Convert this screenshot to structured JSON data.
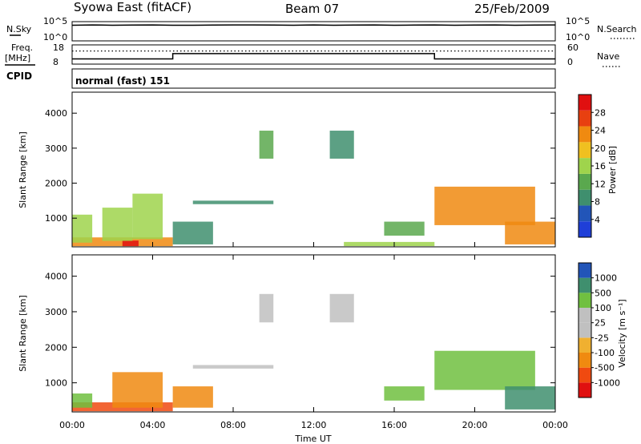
{
  "header": {
    "station": "Syowa East (fitACF)",
    "beam": "Beam 07",
    "date": "25/Feb/2009"
  },
  "colors": {
    "power_scale": [
      "#1f3fd8",
      "#2255b8",
      "#3f8f6e",
      "#5aa84e",
      "#9fd44c",
      "#f0c020",
      "#f08a10",
      "#e84010",
      "#e01010"
    ],
    "velocity_scale": [
      "#e01010",
      "#f04a10",
      "#f08a10",
      "#f0b030",
      "#c0c0c0",
      "#c0c0c0",
      "#70c040",
      "#3f8f6e",
      "#2255b8"
    ],
    "ground_scatter": "#c0c0c0"
  },
  "chart_data": [
    {
      "type": "line",
      "panel": "nsky-nsearch",
      "left_label": "N.Sky",
      "right_label": "N.Search",
      "left_ticks": [
        "10^5",
        "10^0"
      ],
      "right_ticks": [
        "10^5",
        "10^0"
      ],
      "x_range_hours": [
        0,
        24
      ],
      "series": [
        {
          "style": "solid",
          "values_log10": [
            4.2,
            4.3,
            4.2,
            4.25,
            4.3,
            4.2,
            4.2,
            4.25,
            4.3,
            4.3,
            4.25,
            4.2,
            4.3,
            4.2,
            4.25,
            4.3,
            4.2,
            4.25,
            4.3,
            4.2,
            4.25,
            4.3,
            4.2,
            4.25,
            4.3
          ]
        }
      ]
    },
    {
      "type": "line",
      "panel": "freq-nave",
      "left_label": "Freq.",
      "left_unit": "[MHz]",
      "right_label": "Nave",
      "left_ticks": [
        "18",
        "8"
      ],
      "right_ticks": [
        "60",
        "0"
      ],
      "x_range_hours": [
        0,
        24
      ],
      "series": [
        {
          "style": "solid",
          "steps": [
            {
              "from": 0,
              "to": 5,
              "value": 10.5
            },
            {
              "from": 5,
              "to": 18,
              "value": 13.5
            },
            {
              "from": 18,
              "to": 24,
              "value": 10.5
            }
          ]
        },
        {
          "style": "dotted",
          "steps": [
            {
              "from": 0,
              "to": 24,
              "value": 42
            }
          ]
        }
      ]
    },
    {
      "type": "text",
      "panel": "cpid",
      "label": "CPID",
      "value": "normal (fast) 151"
    },
    {
      "type": "heatmap",
      "panel": "power",
      "ylabel": "Slant Range [km]",
      "y_ticks": [
        1000,
        2000,
        3000,
        4000
      ],
      "ylim": [
        180,
        4600
      ],
      "x_range_hours": [
        0,
        24
      ],
      "colorbar_label": "Power [dB]",
      "colorbar_ticks": [
        "4",
        "8",
        "12",
        "16",
        "20",
        "24",
        "28"
      ],
      "regions": [
        {
          "t0": 0.0,
          "t1": 5.0,
          "r0": 200,
          "r1": 450,
          "level": 0.75
        },
        {
          "t0": 2.5,
          "t1": 3.3,
          "r0": 200,
          "r1": 360,
          "level": 1.0
        },
        {
          "t0": 0.0,
          "t1": 1.0,
          "r0": 300,
          "r1": 1100,
          "level": 0.55
        },
        {
          "t0": 1.5,
          "t1": 3.0,
          "r0": 350,
          "r1": 1300,
          "level": 0.5
        },
        {
          "t0": 3.0,
          "t1": 4.5,
          "r0": 400,
          "r1": 1700,
          "level": 0.45
        },
        {
          "t0": 5.0,
          "t1": 7.0,
          "r0": 250,
          "r1": 900,
          "level": 0.3
        },
        {
          "t0": 6.0,
          "t1": 10.0,
          "r0": 1400,
          "r1": 1500,
          "level": 0.25
        },
        {
          "t0": 9.3,
          "t1": 10.0,
          "r0": 2700,
          "r1": 3500,
          "level": 0.35
        },
        {
          "t0": 12.8,
          "t1": 14.0,
          "r0": 2700,
          "r1": 3500,
          "level": 0.3
        },
        {
          "t0": 15.5,
          "t1": 17.5,
          "r0": 500,
          "r1": 900,
          "level": 0.35
        },
        {
          "t0": 18.0,
          "t1": 23.0,
          "r0": 800,
          "r1": 1900,
          "level": 0.7
        },
        {
          "t0": 21.5,
          "t1": 24.0,
          "r0": 250,
          "r1": 900,
          "level": 0.75
        },
        {
          "t0": 13.5,
          "t1": 18.0,
          "r0": 200,
          "r1": 320,
          "level": 0.5
        }
      ]
    },
    {
      "type": "heatmap",
      "panel": "velocity",
      "ylabel": "Slant Range [km]",
      "y_ticks": [
        1000,
        2000,
        3000,
        4000
      ],
      "ylim": [
        180,
        4600
      ],
      "x_range_hours": [
        0,
        24
      ],
      "xlabel": "Time UT",
      "x_ticks": [
        "00:00",
        "04:00",
        "08:00",
        "12:00",
        "16:00",
        "20:00",
        "00:00"
      ],
      "colorbar_label": "Velocity [m s⁻¹]",
      "colorbar_ticks": [
        "-1000",
        "-500",
        "-100",
        "-25",
        "25",
        "100",
        "500",
        "1000"
      ],
      "regions": [
        {
          "t0": 0.0,
          "t1": 5.0,
          "r0": 200,
          "r1": 450,
          "level": 0.15
        },
        {
          "t0": 2.0,
          "t1": 4.5,
          "r0": 300,
          "r1": 1300,
          "level": 0.2
        },
        {
          "t0": 5.0,
          "t1": 7.0,
          "r0": 300,
          "r1": 900,
          "level": 0.25
        },
        {
          "t0": 6.0,
          "t1": 10.0,
          "r0": 1400,
          "r1": 1500,
          "level": 0.5
        },
        {
          "t0": 9.3,
          "t1": 10.0,
          "r0": 2700,
          "r1": 3500,
          "level": 0.5
        },
        {
          "t0": 12.8,
          "t1": 14.0,
          "r0": 2700,
          "r1": 3500,
          "level": 0.5
        },
        {
          "t0": 15.5,
          "t1": 17.5,
          "r0": 500,
          "r1": 900,
          "level": 0.7
        },
        {
          "t0": 18.0,
          "t1": 23.0,
          "r0": 800,
          "r1": 1900,
          "level": 0.75
        },
        {
          "t0": 21.5,
          "t1": 24.0,
          "r0": 250,
          "r1": 900,
          "level": 0.85
        },
        {
          "t0": 0.0,
          "t1": 1.0,
          "r0": 300,
          "r1": 700,
          "level": 0.8
        }
      ]
    }
  ]
}
